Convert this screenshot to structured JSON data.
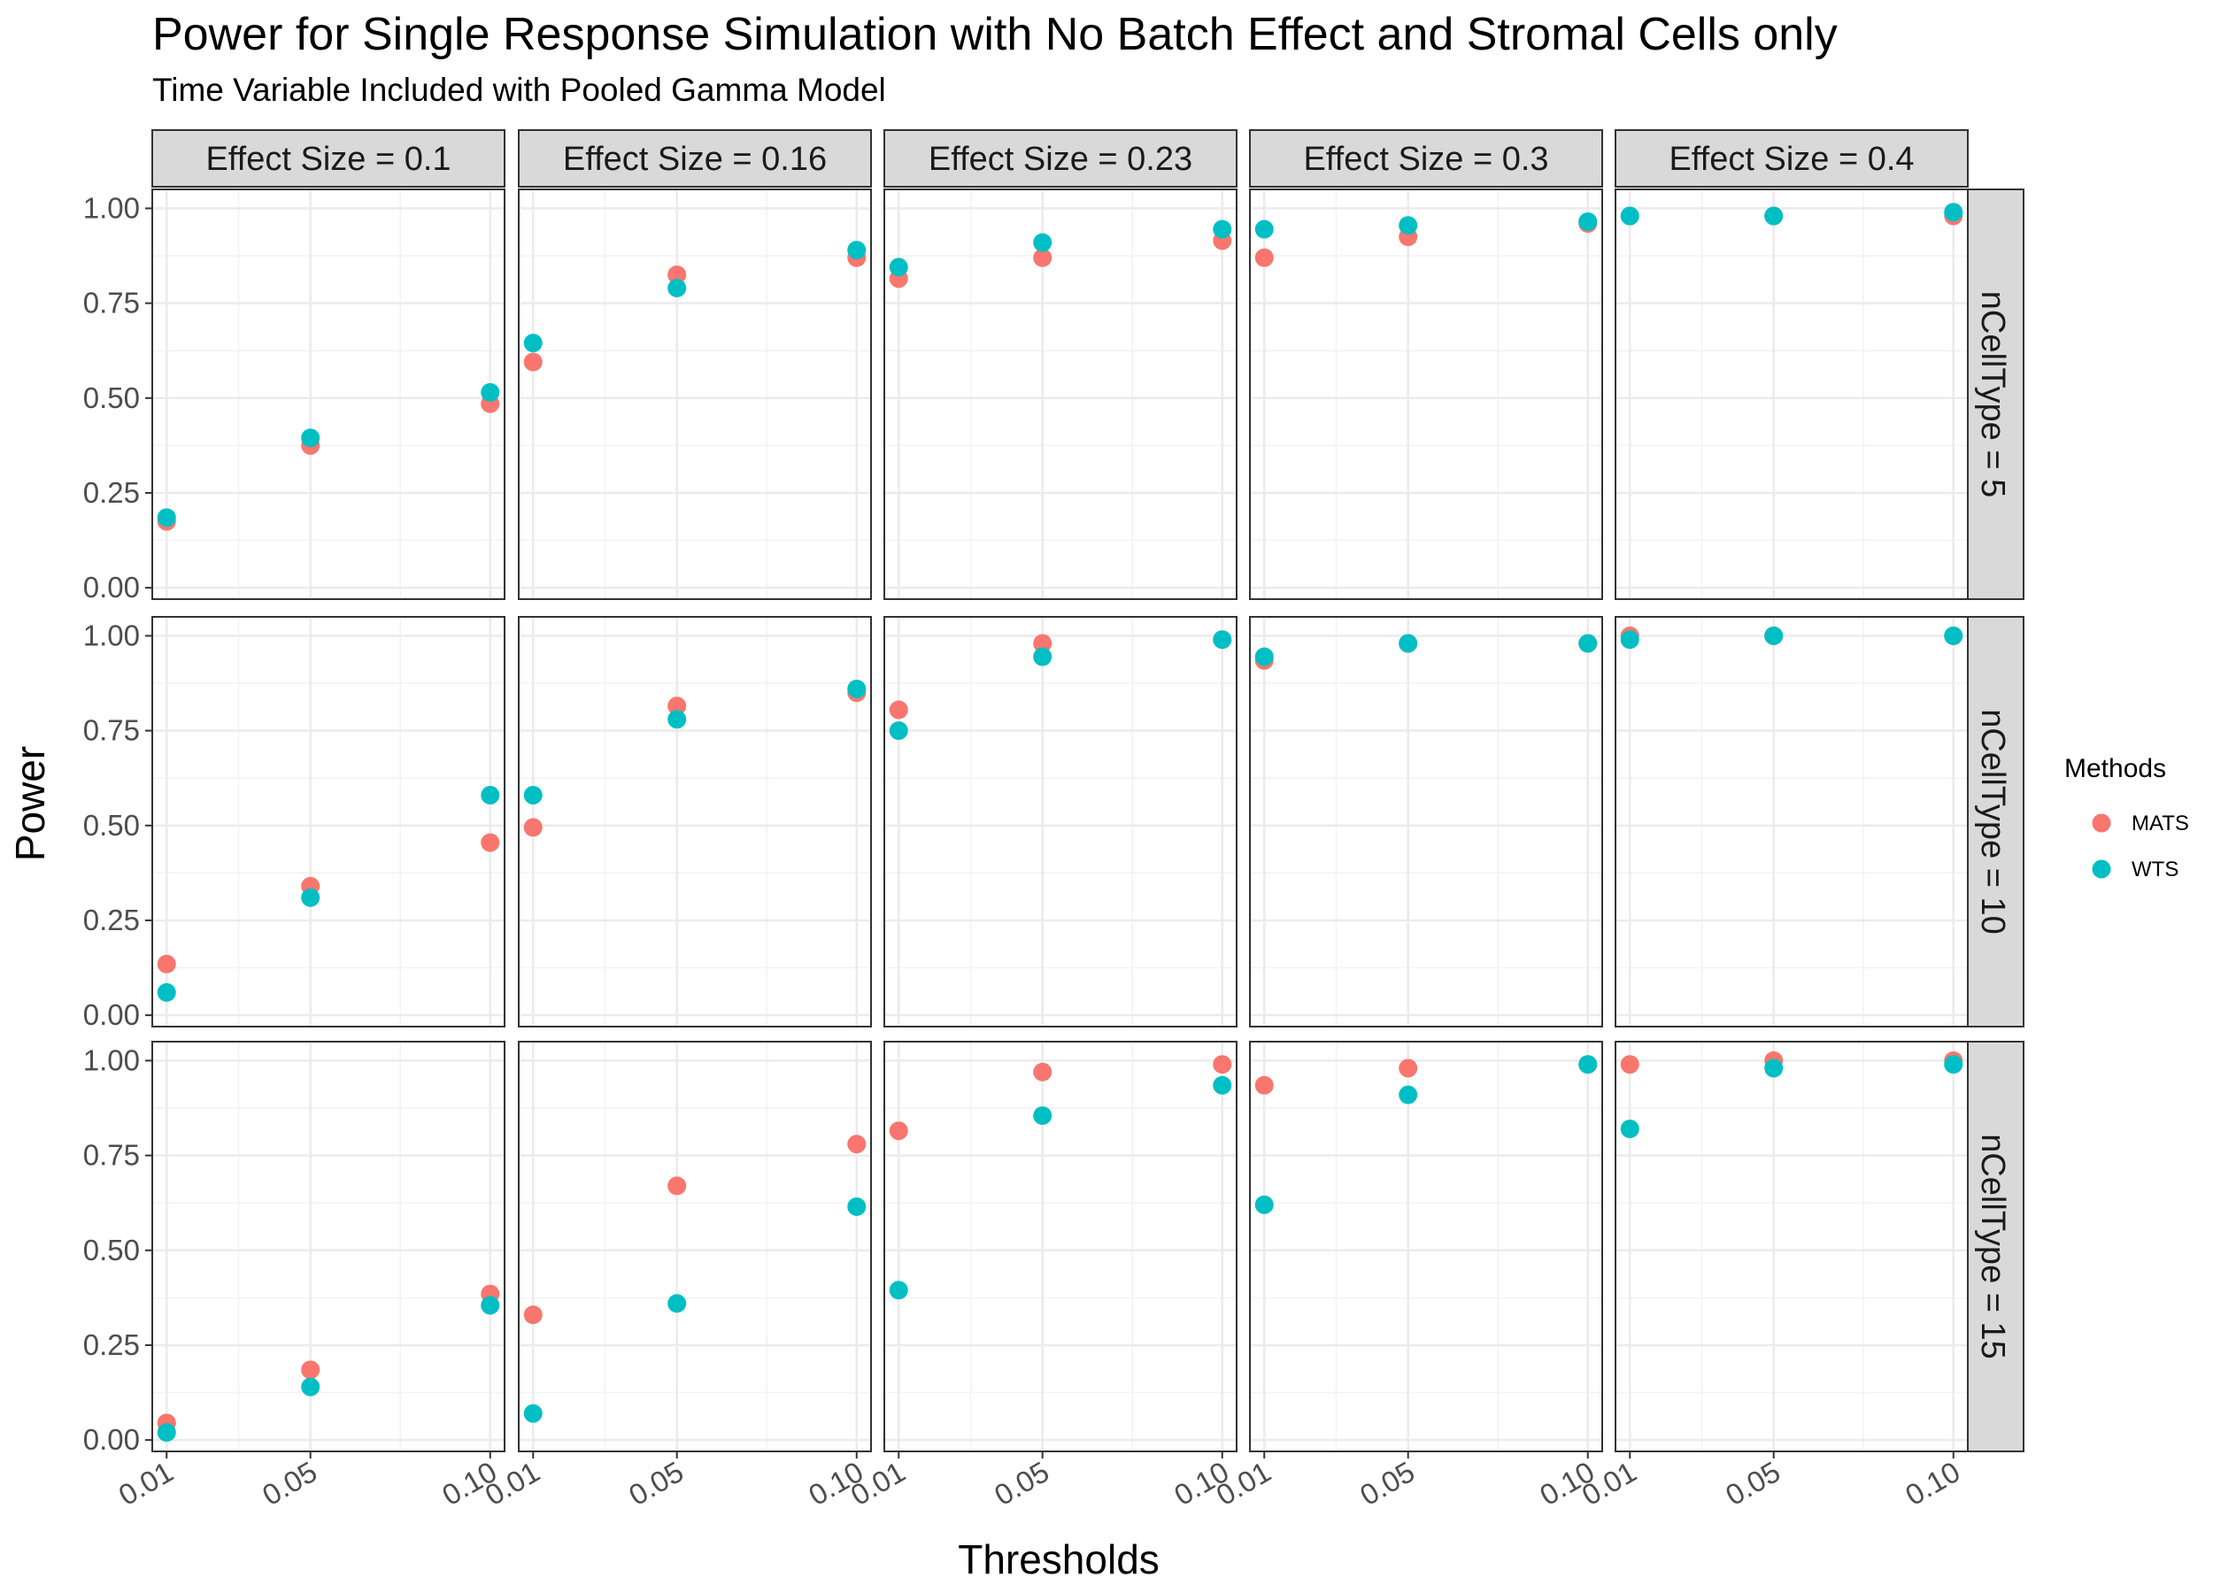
{
  "chart_data": {
    "type": "scatter",
    "title": "Power for Single Response Simulation with No Batch Effect and Stromal Cells only",
    "subtitle": "Time Variable Included with Pooled Gamma Model",
    "xlabel": "Thresholds",
    "ylabel": "Power",
    "x_ticks": [
      "0.01",
      "0.05",
      "0.10"
    ],
    "x_values": [
      0.01,
      0.05,
      0.1
    ],
    "xlim": [
      0.006,
      0.104
    ],
    "ylim": [
      -0.03,
      1.05
    ],
    "y_ticks": [
      "0.00",
      "0.25",
      "0.50",
      "0.75",
      "1.00"
    ],
    "grid": true,
    "facet_columns": [
      "Effect Size = 0.1",
      "Effect Size = 0.16",
      "Effect Size = 0.23",
      "Effect Size = 0.3",
      "Effect Size = 0.4"
    ],
    "facet_rows": [
      "nCellType = 5",
      "nCellType = 10",
      "nCellType = 15"
    ],
    "legend": {
      "title": "Methods",
      "position": "right",
      "entries": [
        {
          "name": "MATS",
          "color": "#F8766D"
        },
        {
          "name": "WTS",
          "color": "#00BFC4"
        }
      ]
    },
    "series": [
      {
        "name": "MATS",
        "color": "#F8766D",
        "panels": [
          [
            [
              0.175,
              0.375,
              0.485
            ],
            [
              0.595,
              0.825,
              0.87
            ],
            [
              0.815,
              0.87,
              0.915
            ],
            [
              0.87,
              0.925,
              0.96
            ],
            [
              0.98,
              0.98,
              0.98
            ]
          ],
          [
            [
              0.135,
              0.34,
              0.455
            ],
            [
              0.495,
              0.815,
              0.85
            ],
            [
              0.805,
              0.98,
              0.99
            ],
            [
              0.935,
              0.98,
              0.98
            ],
            [
              1.0,
              1.0,
              1.0
            ]
          ],
          [
            [
              0.045,
              0.185,
              0.385
            ],
            [
              0.33,
              0.67,
              0.78
            ],
            [
              0.815,
              0.97,
              0.99
            ],
            [
              0.935,
              0.98,
              0.99
            ],
            [
              0.99,
              1.0,
              1.0
            ]
          ]
        ]
      },
      {
        "name": "WTS",
        "color": "#00BFC4",
        "panels": [
          [
            [
              0.185,
              0.395,
              0.515
            ],
            [
              0.645,
              0.79,
              0.89
            ],
            [
              0.845,
              0.91,
              0.945
            ],
            [
              0.945,
              0.955,
              0.965
            ],
            [
              0.98,
              0.98,
              0.99
            ]
          ],
          [
            [
              0.06,
              0.31,
              0.58
            ],
            [
              0.58,
              0.78,
              0.86
            ],
            [
              0.75,
              0.945,
              0.99
            ],
            [
              0.945,
              0.98,
              0.98
            ],
            [
              0.99,
              1.0,
              1.0
            ]
          ],
          [
            [
              0.02,
              0.14,
              0.355
            ],
            [
              0.07,
              0.36,
              0.615
            ],
            [
              0.395,
              0.855,
              0.935
            ],
            [
              0.62,
              0.91,
              0.99
            ],
            [
              0.82,
              0.98,
              0.99
            ]
          ]
        ]
      }
    ]
  }
}
